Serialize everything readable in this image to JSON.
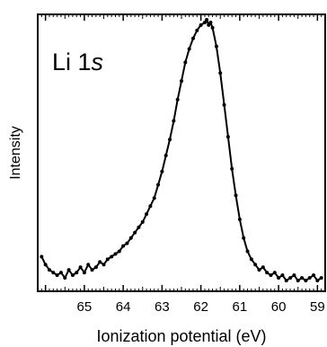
{
  "chart_data": {
    "type": "line",
    "title": "",
    "xlabel": "Ionization potential (eV)",
    "ylabel": "Intensity",
    "annotation": {
      "main": "Li 1",
      "italic": "s"
    },
    "xlim": [
      66.2,
      58.8
    ],
    "ylim": [
      0,
      1.0
    ],
    "x_reversed": true,
    "grid": false,
    "legend": "none",
    "xticks": [
      65,
      64,
      63,
      62,
      61,
      60,
      59
    ],
    "xtick_labels": [
      "65",
      "64",
      "63",
      "62",
      "61",
      "60",
      "59"
    ],
    "series": [
      {
        "color": "#000000",
        "x": [
          66.1,
          66.0,
          65.9,
          65.8,
          65.7,
          65.6,
          65.5,
          65.4,
          65.3,
          65.2,
          65.1,
          65.0,
          64.9,
          64.8,
          64.7,
          64.6,
          64.5,
          64.4,
          64.3,
          64.2,
          64.1,
          64.0,
          63.9,
          63.8,
          63.7,
          63.6,
          63.5,
          63.4,
          63.3,
          63.2,
          63.1,
          63.0,
          62.9,
          62.8,
          62.7,
          62.6,
          62.5,
          62.4,
          62.3,
          62.2,
          62.1,
          62.0,
          61.9,
          61.85,
          61.8,
          61.75,
          61.7,
          61.6,
          61.5,
          61.4,
          61.3,
          61.2,
          61.1,
          61.0,
          60.9,
          60.8,
          60.7,
          60.6,
          60.5,
          60.4,
          60.3,
          60.2,
          60.1,
          60.0,
          59.9,
          59.8,
          59.7,
          59.6,
          59.5,
          59.4,
          59.3,
          59.2,
          59.1,
          59.0,
          58.9
        ],
        "y": [
          0.11,
          0.08,
          0.06,
          0.05,
          0.04,
          0.05,
          0.03,
          0.06,
          0.04,
          0.05,
          0.07,
          0.05,
          0.08,
          0.06,
          0.07,
          0.09,
          0.08,
          0.1,
          0.11,
          0.12,
          0.13,
          0.15,
          0.16,
          0.18,
          0.2,
          0.22,
          0.24,
          0.27,
          0.3,
          0.33,
          0.38,
          0.43,
          0.49,
          0.55,
          0.62,
          0.7,
          0.77,
          0.84,
          0.89,
          0.93,
          0.96,
          0.98,
          0.99,
          1.0,
          0.98,
          0.99,
          0.97,
          0.9,
          0.8,
          0.68,
          0.56,
          0.44,
          0.34,
          0.25,
          0.18,
          0.13,
          0.1,
          0.08,
          0.06,
          0.07,
          0.05,
          0.04,
          0.05,
          0.03,
          0.04,
          0.02,
          0.03,
          0.04,
          0.02,
          0.03,
          0.02,
          0.03,
          0.04,
          0.02,
          0.03
        ]
      }
    ]
  }
}
